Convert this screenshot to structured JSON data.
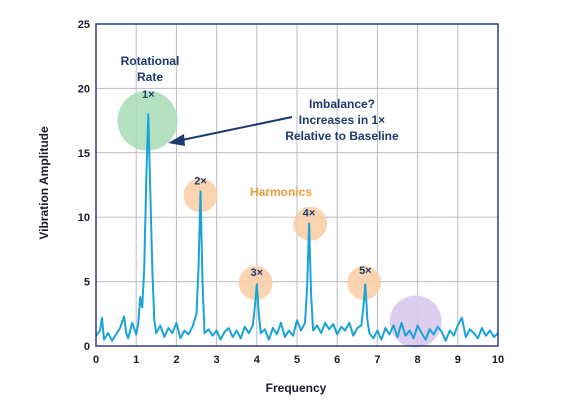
{
  "chart_data": {
    "type": "line",
    "title": "",
    "xlabel": "Frequency",
    "ylabel": "Vibration Amplitude",
    "xlim": [
      0,
      10
    ],
    "ylim": [
      0,
      25
    ],
    "x_ticks": [
      "0",
      "1",
      "2",
      "3",
      "4",
      "5",
      "6",
      "7",
      "8",
      "9",
      "10"
    ],
    "y_ticks": [
      "0",
      "5",
      "10",
      "15",
      "20",
      "25"
    ],
    "grid": true,
    "colors": {
      "line": "#1aa3d6",
      "axis": "#2e3f7f",
      "grid": "#b9bdc9",
      "green_circle": "#a8dcb7",
      "orange_circle": "#f9cfa8",
      "purple_circle": "#d7c6ec",
      "harmonics_text": "#f29a3a",
      "annotation_text": "#1b3a6b",
      "arrow": "#1b3a6b"
    },
    "series": [
      {
        "x": [
          0.0,
          0.1,
          0.15,
          0.2,
          0.3,
          0.4,
          0.5,
          0.6,
          0.7,
          0.75,
          0.8,
          0.9,
          1.0,
          1.05,
          1.1,
          1.15,
          1.2,
          1.25,
          1.3,
          1.35,
          1.4,
          1.45,
          1.5,
          1.6,
          1.7,
          1.8,
          1.9,
          2.0,
          2.1,
          2.2,
          2.3,
          2.4,
          2.5,
          2.55,
          2.6,
          2.65,
          2.7,
          2.8,
          2.9,
          3.0,
          3.1,
          3.2,
          3.3,
          3.4,
          3.5,
          3.6,
          3.7,
          3.8,
          3.9,
          3.95,
          4.0,
          4.05,
          4.1,
          4.2,
          4.3,
          4.4,
          4.5,
          4.6,
          4.7,
          4.8,
          4.9,
          5.0,
          5.1,
          5.2,
          5.25,
          5.3,
          5.35,
          5.4,
          5.5,
          5.6,
          5.7,
          5.8,
          5.9,
          6.0,
          6.1,
          6.2,
          6.3,
          6.4,
          6.5,
          6.6,
          6.65,
          6.7,
          6.75,
          6.8,
          6.9,
          7.0,
          7.1,
          7.2,
          7.3,
          7.4,
          7.5,
          7.6,
          7.7,
          7.8,
          7.9,
          8.0,
          8.1,
          8.2,
          8.3,
          8.4,
          8.5,
          8.6,
          8.7,
          8.8,
          8.9,
          9.0,
          9.1,
          9.2,
          9.3,
          9.4,
          9.5,
          9.6,
          9.7,
          9.8,
          9.9,
          10.0
        ],
        "y": [
          0.8,
          1.2,
          2.2,
          0.5,
          1.0,
          0.4,
          0.9,
          1.4,
          2.3,
          1.0,
          0.6,
          1.8,
          0.9,
          1.7,
          3.8,
          3.0,
          6.0,
          13.0,
          18.0,
          12.0,
          6.0,
          2.0,
          1.0,
          1.6,
          0.7,
          1.4,
          1.0,
          1.8,
          0.6,
          1.2,
          0.9,
          1.5,
          2.5,
          6.0,
          12.0,
          5.0,
          1.0,
          1.3,
          0.8,
          1.2,
          0.5,
          1.1,
          1.4,
          0.7,
          1.2,
          0.6,
          1.5,
          1.0,
          1.6,
          3.0,
          4.8,
          2.5,
          1.0,
          1.3,
          0.5,
          1.4,
          0.9,
          1.8,
          0.7,
          1.2,
          0.8,
          2.0,
          1.2,
          1.8,
          4.5,
          9.5,
          4.0,
          1.2,
          1.6,
          1.0,
          1.8,
          1.3,
          1.7,
          0.9,
          1.5,
          1.2,
          1.8,
          0.8,
          1.4,
          1.6,
          3.0,
          4.8,
          2.0,
          1.0,
          0.6,
          1.2,
          0.5,
          1.4,
          0.9,
          1.6,
          0.7,
          1.8,
          0.8,
          1.2,
          0.6,
          1.6,
          1.0,
          0.5,
          1.3,
          0.9,
          1.5,
          1.1,
          0.4,
          1.2,
          0.8,
          1.6,
          2.2,
          0.7,
          1.3,
          1.0,
          0.6,
          1.4,
          0.8,
          1.2,
          0.7,
          1.0
        ]
      }
    ],
    "annotations": {
      "rotational_rate": [
        "Rotational",
        "Rate"
      ],
      "imbalance": [
        "Imbalance?",
        "Increases in 1×",
        "Relative to Baseline"
      ],
      "harmonics": "Harmonics",
      "peaks": [
        {
          "label": "1×",
          "x": 1.3,
          "y": 18
        },
        {
          "label": "2×",
          "x": 2.6,
          "y": 12
        },
        {
          "label": "3×",
          "x": 4.0,
          "y": 4.8
        },
        {
          "label": "4×",
          "x": 5.3,
          "y": 9.5
        },
        {
          "label": "5×",
          "x": 6.7,
          "y": 4.8
        }
      ]
    }
  }
}
